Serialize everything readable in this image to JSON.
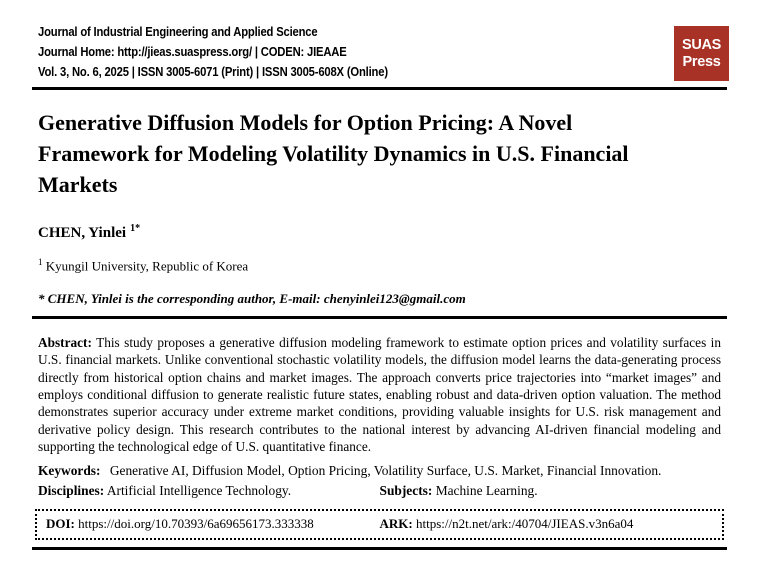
{
  "journal": {
    "name": "Journal of Industrial Engineering and Applied Science",
    "home_line": "Journal Home: http://jieas.suaspress.org/ | CODEN: JIEAAE",
    "issue_line": "Vol. 3, No. 6, 2025 | ISSN 3005-6071 (Print) | ISSN 3005-608X (Online)",
    "logo": {
      "line1": "SUAS",
      "line2": "Press",
      "color": "#a93226"
    }
  },
  "article": {
    "title": "Generative Diffusion Models for Option Pricing: A Novel Framework for Modeling Volatility Dynamics in U.S. Financial Markets",
    "author": {
      "name": "CHEN, Yinlei",
      "superscript": "1*"
    },
    "affiliation": {
      "superscript": "1",
      "text": "Kyungil University, Republic of Korea"
    },
    "corresponding_note": "* CHEN, Yinlei is the corresponding author, E-mail: chenyinlei123@gmail.com"
  },
  "abstract": {
    "label": "Abstract:",
    "text": "This study proposes a generative diffusion modeling framework to estimate option prices and volatility surfaces in U.S. financial markets. Unlike conventional stochastic volatility models, the diffusion model learns the data-generating process directly from historical option chains and market images. The approach converts price trajectories into “market images” and employs conditional diffusion to generate realistic future states, enabling robust and data-driven option valuation. The method demonstrates superior accuracy under extreme market conditions, providing valuable insights for U.S. risk management and derivative policy design. This research contributes to the national interest by advancing AI-driven financial modeling and supporting the technological edge of U.S. quantitative finance."
  },
  "keywords": {
    "label": "Keywords:",
    "text": "Generative AI, Diffusion Model, Option Pricing, Volatility Surface, U.S. Market, Financial Innovation."
  },
  "disciplines": {
    "label": "Disciplines:",
    "text": "Artificial Intelligence Technology."
  },
  "subjects": {
    "label": "Subjects:",
    "text": "Machine Learning."
  },
  "identifiers": {
    "doi": {
      "label": "DOI:",
      "value": "https://doi.org/10.70393/6a69656173.333338"
    },
    "ark": {
      "label": "ARK:",
      "value": "https://n2t.net/ark:/40704/JIEAS.v3n6a04"
    }
  }
}
